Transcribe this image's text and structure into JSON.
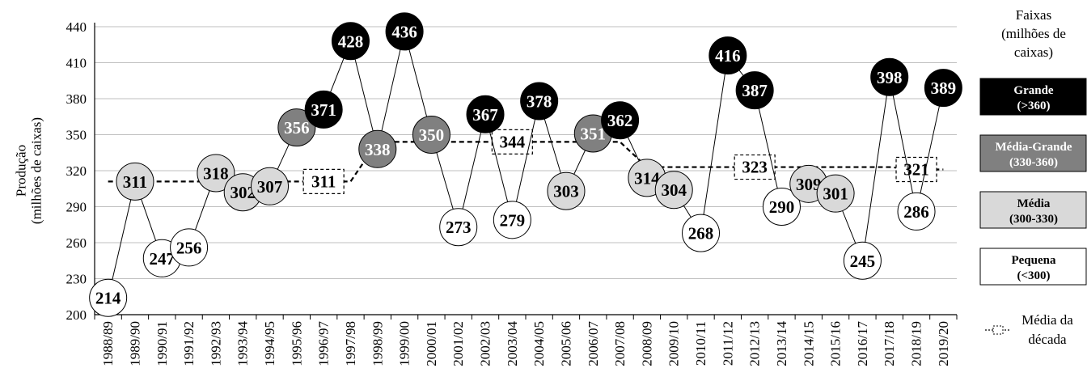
{
  "chart_data": {
    "type": "line",
    "title": "",
    "ylabel": [
      "Produção",
      "(milhões de caixas)"
    ],
    "xlabel": "",
    "ylim": [
      200,
      440
    ],
    "yticks": [
      200,
      230,
      260,
      290,
      320,
      350,
      380,
      410,
      440
    ],
    "grid": true,
    "categories": [
      "1988/89",
      "1989/90",
      "1990/91",
      "1991/92",
      "1992/93",
      "1993/94",
      "1994/95",
      "1995/96",
      "1996/97",
      "1997/98",
      "1998/99",
      "1999/00",
      "2000/01",
      "2001/02",
      "2002/03",
      "2003/04",
      "2004/05",
      "2005/06",
      "2006/07",
      "2007/08",
      "2008/09",
      "2009/10",
      "2010/11",
      "2011/12",
      "2012/13",
      "2013/14",
      "2014/15",
      "2015/16",
      "2016/17",
      "2017/18",
      "2018/19",
      "2019/20"
    ],
    "series": [
      {
        "values": [
          214,
          311,
          247,
          256,
          318,
          302,
          307,
          356,
          371,
          428,
          338,
          436,
          350,
          273,
          367,
          279,
          378,
          303,
          351,
          362,
          314,
          304,
          268,
          416,
          387,
          290,
          309,
          301,
          245,
          398,
          286,
          389
        ],
        "labels": [
          "214",
          "311",
          "247",
          "256",
          "318",
          "302",
          "307",
          "356",
          "371",
          "428",
          "338",
          "436",
          "350",
          "273",
          "367",
          "279",
          "378",
          "303",
          "351",
          "362",
          "314",
          "304",
          "268",
          "416",
          "387",
          "290",
          "309",
          "301",
          "245",
          "398",
          "286",
          "389"
        ]
      },
      {
        "name": "Média da década",
        "values": [
          311,
          311,
          311,
          311,
          311,
          311,
          311,
          311,
          311,
          311,
          344,
          344,
          344,
          344,
          344,
          344,
          344,
          344,
          344,
          344,
          323,
          323,
          323,
          323,
          323,
          323,
          323,
          323,
          323,
          323,
          321,
          321
        ],
        "labels": [
          {
            "index": 8,
            "text": "311"
          },
          {
            "index": 15,
            "text": "344"
          },
          {
            "index": 24,
            "text": "323"
          },
          {
            "index": 30,
            "text": "321"
          }
        ]
      }
    ],
    "legend": {
      "position": "right",
      "title": [
        "Faixas",
        "(milhões de",
        "caixas)"
      ],
      "entries": [
        {
          "line1": "Grande",
          "line2": "(>360)",
          "fill": "#000000",
          "text": "#ffffff"
        },
        {
          "line1": "Média-Grande",
          "line2": "(330-360)",
          "fill": "#808080",
          "text": "#ffffff"
        },
        {
          "line1": "Média",
          "line2": "(300-330)",
          "fill": "#d9d9d9",
          "text": "#000000"
        },
        {
          "line1": "Pequena",
          "line2": "(<300)",
          "fill": "#ffffff",
          "text": "#000000"
        }
      ],
      "line_entry": [
        "Média da",
        "década"
      ]
    },
    "colors": {
      "grande": "#000000",
      "media_grande": "#808080",
      "media": "#d9d9d9",
      "pequena": "#ffffff",
      "grid": "#bfbfbf"
    }
  }
}
